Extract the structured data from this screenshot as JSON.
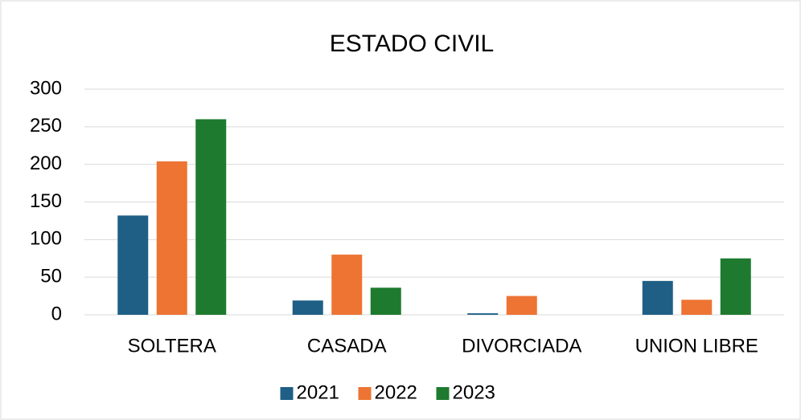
{
  "chart_data": {
    "type": "bar",
    "title": "ESTADO CIVIL",
    "categories": [
      "SOLTERA",
      "CASADA",
      "DIVORCIADA",
      "UNION LIBRE"
    ],
    "series": [
      {
        "name": "2021",
        "color": "#1f5f86",
        "values": [
          132,
          19,
          2,
          45
        ]
      },
      {
        "name": "2022",
        "color": "#ed7433",
        "values": [
          204,
          80,
          25,
          20
        ]
      },
      {
        "name": "2023",
        "color": "#1e7a2f",
        "values": [
          260,
          36,
          0,
          75
        ]
      }
    ],
    "ylim": [
      0,
      300
    ],
    "yticks": [
      0,
      50,
      100,
      150,
      200,
      250,
      300
    ],
    "grid": true,
    "legend": "bottom"
  }
}
